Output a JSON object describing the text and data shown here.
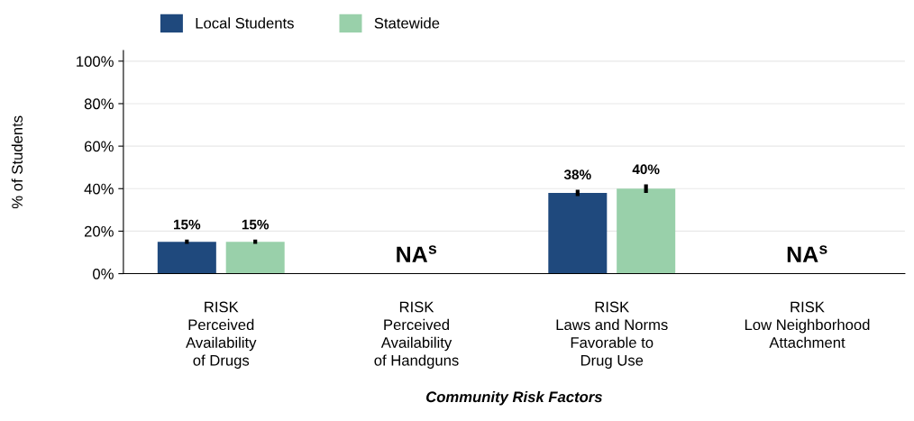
{
  "chart_data": {
    "type": "bar",
    "categories": [
      "RISK\nPerceived\nAvailability\nof Drugs",
      "RISK\nPerceived\nAvailability\nof Handguns",
      "RISK\nLaws and Norms\nFavorable to\nDrug Use",
      "RISK\nLow Neighborhood\nAttachment"
    ],
    "series": [
      {
        "name": "Local Students",
        "color": "#1f497d",
        "values": [
          15,
          null,
          38,
          null
        ],
        "errors": [
          1,
          null,
          1.5,
          null
        ],
        "value_labels": [
          "15%",
          null,
          "38%",
          null
        ]
      },
      {
        "name": "Statewide",
        "color": "#99d0aa",
        "values": [
          15,
          null,
          40,
          null
        ],
        "errors": [
          1,
          null,
          2,
          null
        ],
        "value_labels": [
          "15%",
          null,
          "40%",
          null
        ]
      }
    ],
    "xlabel": "Community Risk Factors",
    "ylabel": "% of Students",
    "ylim": [
      0,
      105
    ],
    "yticks": [
      {
        "value": 0,
        "label": "0%"
      },
      {
        "value": 20,
        "label": "20%"
      },
      {
        "value": 40,
        "label": "40%"
      },
      {
        "value": 60,
        "label": "60%"
      },
      {
        "value": 80,
        "label": "80%"
      },
      {
        "value": 100,
        "label": "100%"
      }
    ],
    "annotations": [
      "NA$^{s}$",
      "NA$^{s}$"
    ],
    "grid": "y",
    "legend": "top left"
  }
}
